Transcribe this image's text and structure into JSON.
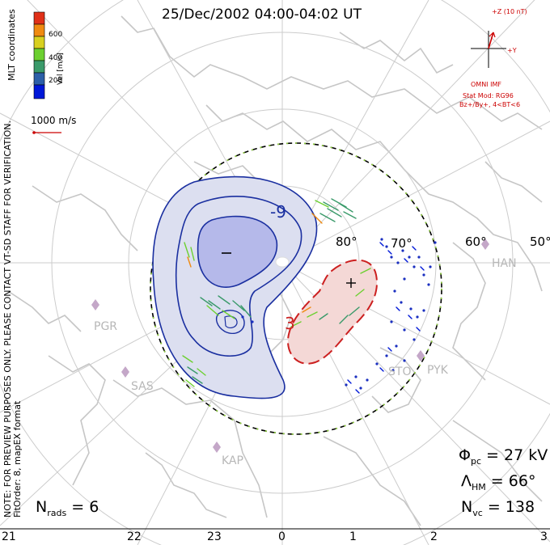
{
  "title": "25/Dec/2002 04:00-04:02 UT",
  "notice_lines": [
    "NOTE: FOR PREVIEW PURPOSES ONLY. PLEASE CONTACT VT-SD STAFF FOR VERIFICATION.",
    "FitOrder: 8, mapEX format"
  ],
  "coordinates_label": "MLT coordinates",
  "colorbar": {
    "label": "Vel [m/s]",
    "ticks": [
      "600",
      "400",
      "200"
    ],
    "colors": [
      "#0018d8",
      "#2c5fa8",
      "#3a9a6a",
      "#6cd030",
      "#d8d020",
      "#f08a10",
      "#e03018"
    ]
  },
  "reference_vector_label": "1000 m/s",
  "imf": {
    "z_label": "+Z (10 nT)",
    "y_label": "+Y",
    "source": "OMNI IMF",
    "model_line1": "Stat Mod: RG96",
    "model_line2": "Bz+/By+, 4<BT<6"
  },
  "potential_labels": {
    "negative": "-9",
    "positive": "3"
  },
  "lat_labels": [
    "80°",
    "70°",
    "60°",
    "50°"
  ],
  "stations": [
    "HAN",
    "PGR",
    "SAS",
    "KAP",
    "PYK",
    "STO"
  ],
  "stats": {
    "phi_pc_prefix": "Φ",
    "phi_pc_sub": "pc",
    "phi_pc_value": " =  27 kV",
    "lambda_hm_prefix": "Λ",
    "lambda_hm_sub": "HM",
    "lambda_hm_value": " =  66°",
    "n_vc_prefix": "N",
    "n_vc_sub": "vc",
    "n_vc_value": " =  138",
    "n_rads_prefix": "N",
    "n_rads_sub": "rads",
    "n_rads_value": " =  6"
  },
  "mlt_ticks": [
    "21",
    "22",
    "23",
    "0",
    "1",
    "2",
    "3"
  ],
  "colors": {
    "negative_cell": "#1a2fa0",
    "positive_cell": "#cc2020",
    "neg_fill": "#dcdff0",
    "pos_fill": "#f4d8d6",
    "station": "#c4a7c8",
    "coast": "#c6c6c6"
  }
}
